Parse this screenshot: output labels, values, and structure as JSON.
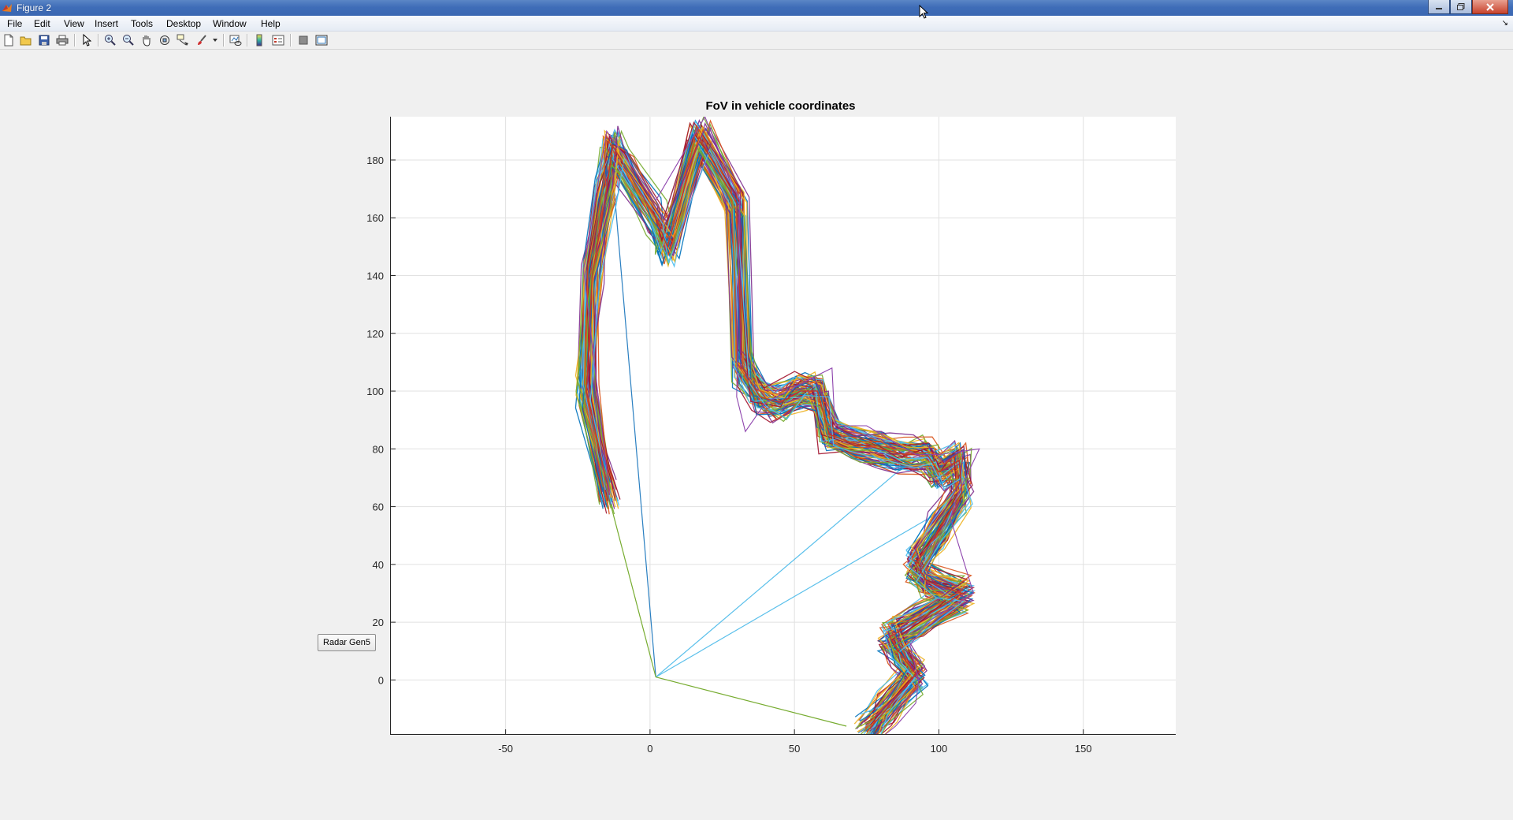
{
  "window": {
    "title": "Figure 2",
    "controls": [
      "minimize",
      "maximize",
      "close"
    ]
  },
  "menubar": {
    "items": [
      "File",
      "Edit",
      "View",
      "Insert",
      "Tools",
      "Desktop",
      "Window",
      "Help"
    ]
  },
  "toolbar": {
    "icons": [
      "new-figure-icon",
      "open-file-icon",
      "save-icon",
      "print-icon",
      "edit-plot-icon",
      "zoom-in-icon",
      "zoom-out-icon",
      "pan-icon",
      "rotate-3d-icon",
      "data-cursor-icon",
      "brush-icon",
      "link-plot-icon",
      "colorbar-icon",
      "legend-icon",
      "hide-plot-tools-icon",
      "show-plot-tools-icon"
    ]
  },
  "button": {
    "label": "Radar Gen5"
  },
  "chart_data": {
    "type": "line",
    "title": "FoV in vehicle coordinates",
    "xlabel": "",
    "ylabel": "",
    "xlim": [
      -90,
      182
    ],
    "ylim": [
      -19,
      195
    ],
    "xticks": [
      -50,
      0,
      50,
      100,
      150
    ],
    "yticks": [
      0,
      20,
      40,
      60,
      80,
      100,
      120,
      140,
      160,
      180
    ],
    "grid": true,
    "series_count_description": "many overlapping coloured polylines forming the field-of-view boundary",
    "boundary": {
      "x": [
        -14,
        -22,
        -20,
        -15,
        -13,
        -10,
        2,
        6,
        17,
        30,
        32,
        38,
        45,
        52,
        58,
        62,
        70,
        80,
        88,
        96,
        100,
        107,
        108,
        100,
        92,
        96,
        108,
        92,
        83,
        86,
        92,
        82,
        75
      ],
      "y": [
        64,
        100,
        140,
        170,
        185,
        180,
        160,
        150,
        188,
        165,
        108,
        98,
        96,
        100,
        100,
        85,
        82,
        80,
        78,
        78,
        72,
        76,
        65,
        52,
        40,
        34,
        30,
        20,
        15,
        10,
        2,
        -10,
        -18
      ],
      "color": "#c0392b"
    },
    "outer_envelope": {
      "x": [
        -14,
        -23,
        -15,
        2,
        19,
        31,
        30,
        33,
        40,
        55,
        63,
        64,
        75,
        92,
        100,
        114,
        106,
        104,
        112,
        96,
        90,
        93,
        92,
        85,
        80
      ],
      "y": [
        64,
        142,
        190,
        166,
        195,
        166,
        98,
        86,
        96,
        104,
        108,
        88,
        88,
        78,
        78,
        80,
        63,
        56,
        30,
        20,
        12,
        0,
        -8,
        -16,
        -20
      ],
      "color": "#8e44ad"
    },
    "fov_lines": [
      {
        "x": [
          2,
          -12
        ],
        "y": [
          1,
          165
        ],
        "color": "#2a7fc1"
      },
      {
        "x": [
          2,
          88
        ],
        "y": [
          1,
          74
        ],
        "color": "#5bc0eb"
      },
      {
        "x": [
          2,
          100
        ],
        "y": [
          1,
          58
        ],
        "color": "#5bc0eb"
      },
      {
        "x": [
          2,
          -15
        ],
        "y": [
          1,
          66
        ],
        "color": "#77ac30"
      },
      {
        "x": [
          2,
          68
        ],
        "y": [
          1,
          -16
        ],
        "color": "#77ac30"
      }
    ],
    "series_colors": [
      "#0072bd",
      "#d95319",
      "#edb120",
      "#7e2f8e",
      "#77ac30",
      "#4dbeee",
      "#a2142f"
    ]
  }
}
